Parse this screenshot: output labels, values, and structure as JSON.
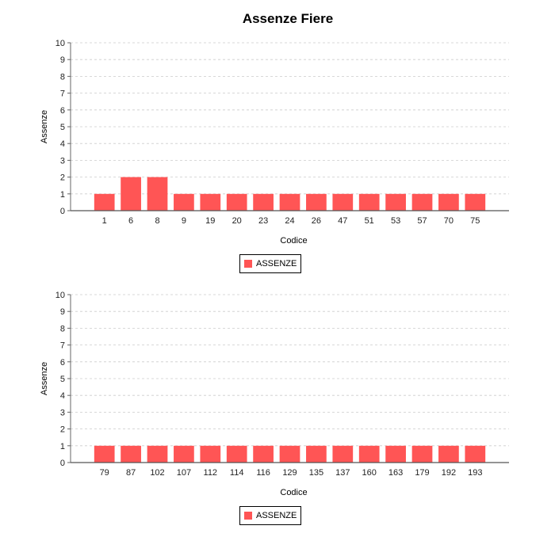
{
  "title": "Assenze Fiere",
  "chart_data": [
    {
      "type": "bar",
      "xlabel": "Codice",
      "ylabel": "Assenze",
      "ylim": [
        0,
        10
      ],
      "yticks": [
        "0",
        "1",
        "2",
        "3",
        "4",
        "5",
        "6",
        "7",
        "8",
        "9",
        "10"
      ],
      "grid": true,
      "legend_position": "bottom",
      "categories": [
        "1",
        "6",
        "8",
        "9",
        "19",
        "20",
        "23",
        "24",
        "26",
        "47",
        "51",
        "53",
        "57",
        "70",
        "75"
      ],
      "series": [
        {
          "name": "ASSENZE",
          "color": "#ff5555",
          "values": [
            1,
            2,
            2,
            1,
            1,
            1,
            1,
            1,
            1,
            1,
            1,
            1,
            1,
            1,
            1
          ]
        }
      ]
    },
    {
      "type": "bar",
      "xlabel": "Codice",
      "ylabel": "Assenze",
      "ylim": [
        0,
        10
      ],
      "yticks": [
        "0",
        "1",
        "2",
        "3",
        "4",
        "5",
        "6",
        "7",
        "8",
        "9",
        "10"
      ],
      "grid": true,
      "legend_position": "bottom",
      "categories": [
        "79",
        "87",
        "102",
        "107",
        "112",
        "114",
        "116",
        "129",
        "135",
        "137",
        "160",
        "163",
        "179",
        "192",
        "193"
      ],
      "series": [
        {
          "name": "ASSENZE",
          "color": "#ff5555",
          "values": [
            1,
            1,
            1,
            1,
            1,
            1,
            1,
            1,
            1,
            1,
            1,
            1,
            1,
            1,
            1
          ]
        }
      ]
    }
  ]
}
